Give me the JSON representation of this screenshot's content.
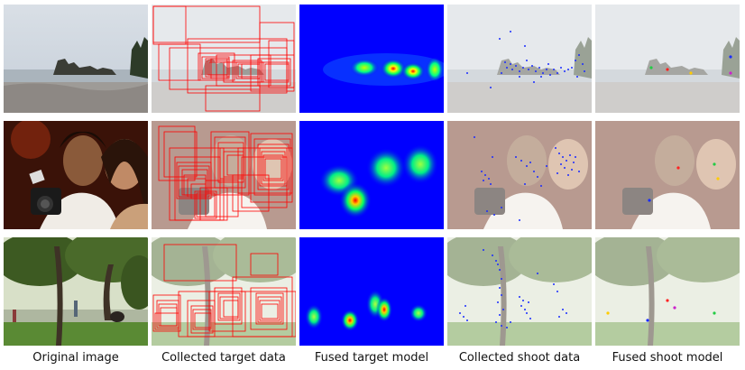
{
  "columns": [
    {
      "label": "Original image"
    },
    {
      "label": "Collected target data"
    },
    {
      "label": "Fused target model"
    },
    {
      "label": "Collected shoot data"
    },
    {
      "label": "Fused shoot model"
    }
  ],
  "rows": [
    {
      "scene": "beach-sea-stacks"
    },
    {
      "scene": "two-people-with-camera"
    },
    {
      "scene": "park-trees-people"
    }
  ],
  "colors": {
    "box": "#ff0000",
    "shoot_point": "#1a2cff",
    "heat_background": "#0000ff"
  }
}
